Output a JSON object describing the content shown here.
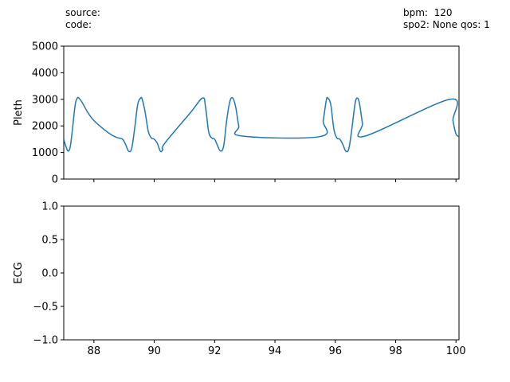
{
  "header": {
    "source_label": "source:",
    "code_label": "code:",
    "bpm_text": "bpm:  120",
    "spo2_text": "spo2: None",
    "sqs_text": "qos: 1"
  },
  "chart_data": [
    {
      "type": "line",
      "ylabel": "Pleth",
      "xlim": [
        87.0,
        100.1
      ],
      "ylim": [
        0,
        5000
      ],
      "yticks": [
        "0",
        "1000",
        "2000",
        "3000",
        "4000",
        "5000"
      ],
      "line_color": "#1f77b4",
      "series": [
        {
          "x": [
            87.0,
            87.08,
            87.15,
            87.22,
            87.3,
            87.38,
            87.45,
            87.5,
            87.6,
            87.8,
            88.0,
            88.3,
            88.6,
            88.8,
            88.95,
            89.05,
            89.15,
            89.25,
            89.35,
            89.45,
            89.55,
            89.6,
            89.7,
            89.8,
            89.9,
            90.0,
            90.1,
            90.2,
            90.28,
            90.35,
            91.2,
            91.6,
            91.7,
            91.8,
            91.9,
            92.0,
            92.1,
            92.2,
            92.3,
            92.4,
            92.5,
            92.6,
            92.7,
            92.8,
            92.9,
            95.5,
            95.6,
            95.7,
            95.75,
            95.85,
            95.95,
            96.05,
            96.15,
            96.25,
            96.35,
            96.45,
            96.55,
            96.65,
            96.72,
            96.8,
            96.9,
            97.0,
            99.8,
            99.9,
            100.0,
            100.1
          ],
          "y": [
            1500,
            1200,
            1050,
            1250,
            2000,
            2800,
            3050,
            3050,
            2900,
            2500,
            2200,
            1900,
            1650,
            1550,
            1500,
            1300,
            1050,
            1150,
            1900,
            2800,
            3050,
            3000,
            2500,
            1800,
            1550,
            1500,
            1350,
            1050,
            1100,
            1350,
            2500,
            3050,
            2700,
            1800,
            1550,
            1500,
            1250,
            1050,
            1250,
            2200,
            2900,
            3050,
            2700,
            2000,
            1620,
            1600,
            2200,
            2950,
            3050,
            2800,
            1900,
            1550,
            1500,
            1300,
            1050,
            1150,
            1900,
            2800,
            3050,
            2850,
            2100,
            1620,
            3000,
            2200,
            1700,
            1600
          ]
        }
      ]
    },
    {
      "type": "line",
      "ylabel": "ECG",
      "xlabel": "",
      "xlim": [
        87.0,
        100.1
      ],
      "ylim": [
        -1.0,
        1.0
      ],
      "yticks": [
        "−1.0",
        "−0.5",
        "0.0",
        "0.5",
        "1.0"
      ],
      "xticks": [
        "88",
        "90",
        "92",
        "94",
        "96",
        "98",
        "100"
      ],
      "series": []
    }
  ]
}
